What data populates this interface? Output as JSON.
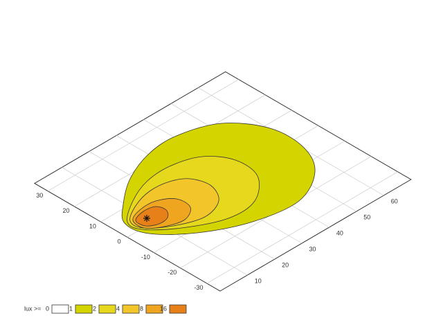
{
  "chart_data": {
    "type": "contour",
    "legend_title": "lux >=",
    "levels": [
      0,
      1,
      2,
      4,
      8,
      16
    ],
    "colors": [
      "#ffffff",
      "#d4d400",
      "#e6d81c",
      "#f2c62a",
      "#f0a520",
      "#e8801a"
    ],
    "xlim": [
      0,
      70
    ],
    "ylim": [
      -35,
      35
    ],
    "xticks": [
      10,
      20,
      30,
      40,
      50,
      60
    ],
    "yticks": [
      -30,
      -20,
      -10,
      0,
      10,
      20,
      30
    ],
    "grid": true
  }
}
